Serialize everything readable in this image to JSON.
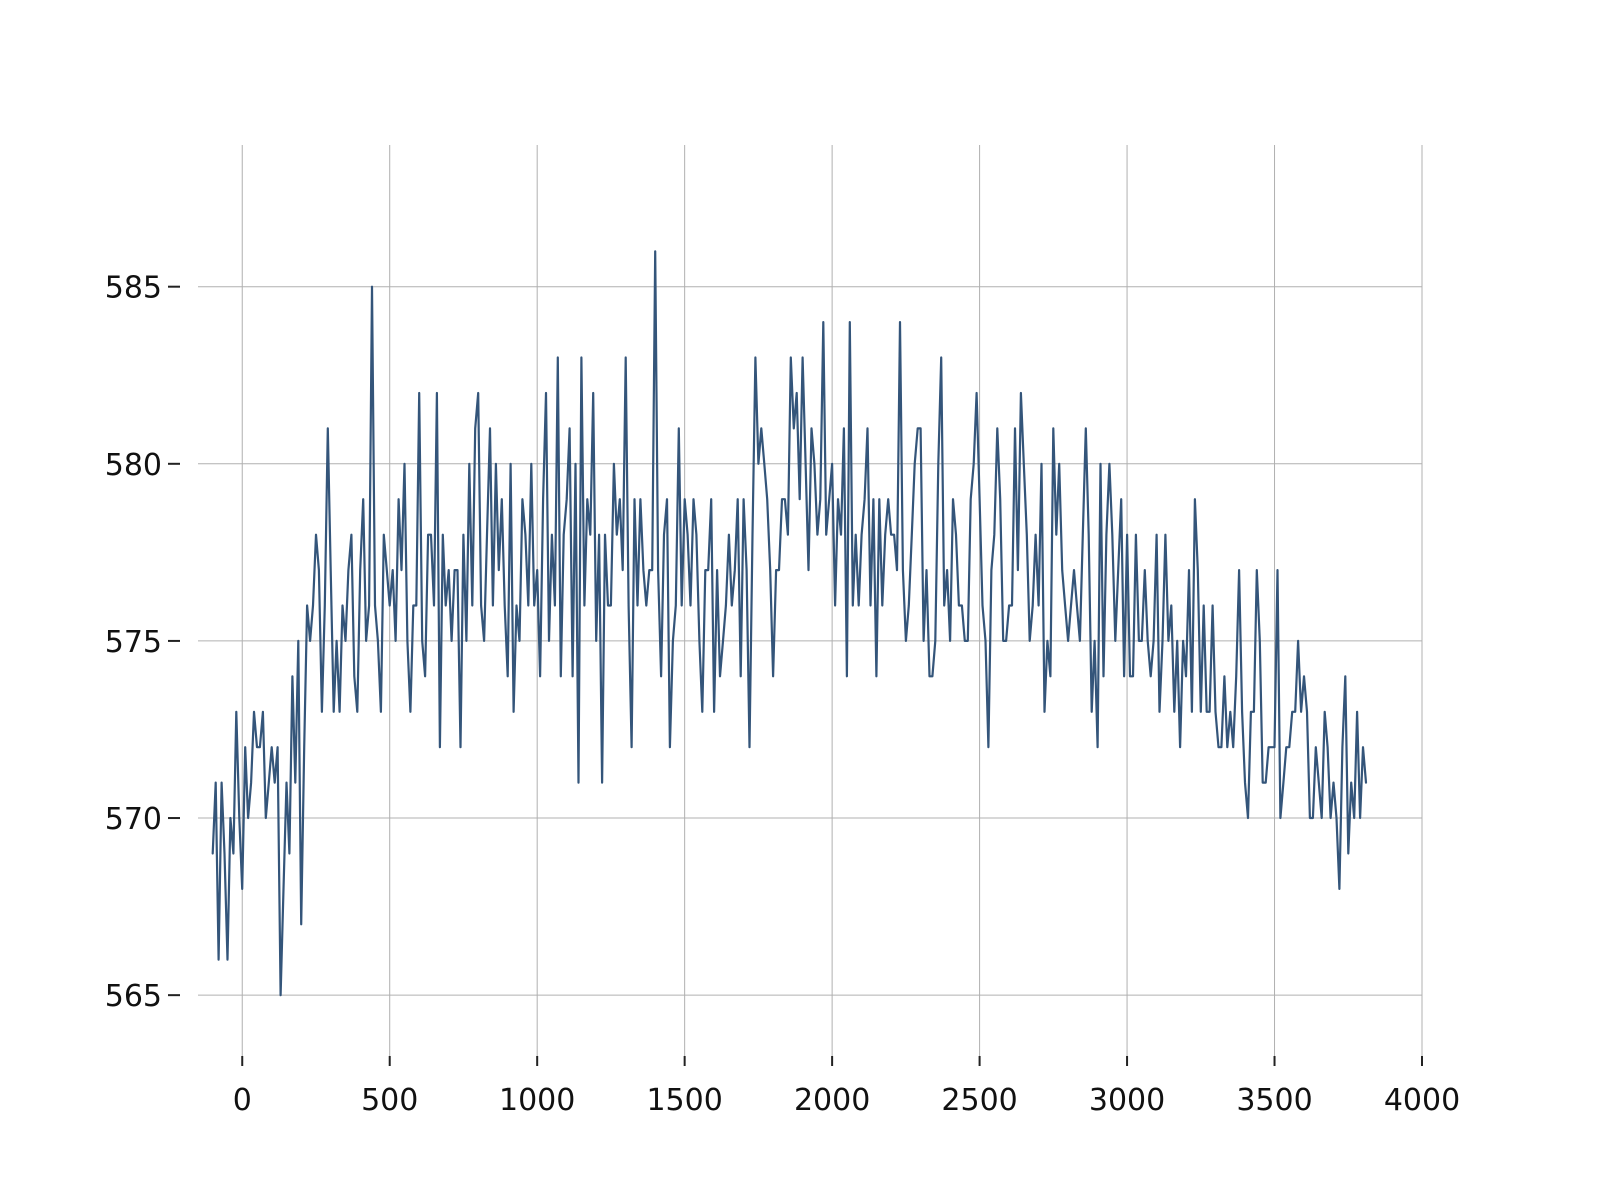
{
  "chart_data": {
    "type": "line",
    "title": "",
    "xlabel": "",
    "ylabel": "",
    "xlim": [
      -150,
      4000
    ],
    "ylim": [
      563,
      589
    ],
    "grid": true,
    "legend": "none",
    "x_ticks": [
      0,
      500,
      1000,
      1500,
      2000,
      2500,
      3000,
      3500,
      4000
    ],
    "x_tick_labels": [
      "0",
      "500",
      "1000",
      "1500",
      "2000",
      "2500",
      "3000",
      "3500",
      "4000"
    ],
    "y_ticks": [
      565,
      570,
      575,
      580,
      585
    ],
    "y_tick_labels": [
      "565",
      "570",
      "575",
      "580",
      "585"
    ],
    "line_color": "#34557a",
    "grid_color": "#b0b0b0",
    "series": [
      {
        "x": [
          -100,
          -90,
          -80,
          -70,
          -60,
          -50,
          -40,
          -30,
          -20,
          -10,
          0,
          10,
          20,
          30,
          40,
          50,
          60,
          70,
          80,
          90,
          100,
          110,
          120,
          130,
          140,
          150,
          160,
          170,
          180,
          190,
          200,
          210,
          220,
          230,
          240,
          250,
          260,
          270,
          280,
          290,
          300,
          310,
          320,
          330,
          340,
          350,
          360,
          370,
          380,
          390,
          400,
          410,
          420,
          430,
          440,
          450,
          460,
          470,
          480,
          490,
          500,
          510,
          520,
          530,
          540,
          550,
          560,
          570,
          580,
          590,
          600,
          610,
          620,
          630,
          640,
          650,
          660,
          670,
          680,
          690,
          700,
          710,
          720,
          730,
          740,
          750,
          760,
          770,
          780,
          790,
          800,
          810,
          820,
          830,
          840,
          850,
          860,
          870,
          880,
          890,
          900,
          910,
          920,
          930,
          940,
          950,
          960,
          970,
          980,
          990,
          1000,
          1010,
          1020,
          1030,
          1040,
          1050,
          1060,
          1070,
          1080,
          1090,
          1100,
          1110,
          1120,
          1130,
          1140,
          1150,
          1160,
          1170,
          1180,
          1190,
          1200,
          1210,
          1220,
          1230,
          1240,
          1250,
          1260,
          1270,
          1280,
          1290,
          1300,
          1310,
          1320,
          1330,
          1340,
          1350,
          1360,
          1370,
          1380,
          1390,
          1400,
          1410,
          1420,
          1430,
          1440,
          1450,
          1460,
          1470,
          1480,
          1490,
          1500,
          1510,
          1520,
          1530,
          1540,
          1550,
          1560,
          1570,
          1580,
          1590,
          1600,
          1610,
          1620,
          1630,
          1640,
          1650,
          1660,
          1670,
          1680,
          1690,
          1700,
          1710,
          1720,
          1730,
          1740,
          1750,
          1760,
          1770,
          1780,
          1790,
          1800,
          1810,
          1820,
          1830,
          1840,
          1850,
          1860,
          1870,
          1880,
          1890,
          1900,
          1910,
          1920,
          1930,
          1940,
          1950,
          1960,
          1970,
          1980,
          1990,
          2000,
          2010,
          2020,
          2030,
          2040,
          2050,
          2060,
          2070,
          2080,
          2090,
          2100,
          2110,
          2120,
          2130,
          2140,
          2150,
          2160,
          2170,
          2180,
          2190,
          2200,
          2210,
          2220,
          2230,
          2240,
          2250,
          2260,
          2270,
          2280,
          2290,
          2300,
          2310,
          2320,
          2330,
          2340,
          2350,
          2360,
          2370,
          2380,
          2390,
          2400,
          2410,
          2420,
          2430,
          2440,
          2450,
          2460,
          2470,
          2480,
          2490,
          2500,
          2510,
          2520,
          2530,
          2540,
          2550,
          2560,
          2570,
          2580,
          2590,
          2600,
          2610,
          2620,
          2630,
          2640,
          2650,
          2660,
          2670,
          2680,
          2690,
          2700,
          2710,
          2720,
          2730,
          2740,
          2750,
          2760,
          2770,
          2780,
          2790,
          2800,
          2810,
          2820,
          2830,
          2840,
          2850,
          2860,
          2870,
          2880,
          2890,
          2900,
          2910,
          2920,
          2930,
          2940,
          2950,
          2960,
          2970,
          2980,
          2990,
          3000,
          3010,
          3020,
          3030,
          3040,
          3050,
          3060,
          3070,
          3080,
          3090,
          3100,
          3110,
          3120,
          3130,
          3140,
          3150,
          3160,
          3170,
          3180,
          3190,
          3200,
          3210,
          3220,
          3230,
          3240,
          3250,
          3260,
          3270,
          3280,
          3290,
          3300,
          3310,
          3320,
          3330,
          3340,
          3350,
          3360,
          3370,
          3380,
          3390,
          3400,
          3410,
          3420,
          3430,
          3440,
          3450,
          3460,
          3470,
          3480,
          3490,
          3500,
          3510,
          3520,
          3530,
          3540,
          3550,
          3560,
          3570,
          3580,
          3590,
          3600,
          3610,
          3620,
          3630,
          3640,
          3650,
          3660,
          3670,
          3680,
          3690,
          3700,
          3710,
          3720,
          3730,
          3740,
          3750,
          3760,
          3770,
          3780,
          3790,
          3800,
          3810
        ],
        "values": [
          569,
          571,
          566,
          571,
          569,
          566,
          570,
          569,
          573,
          570,
          568,
          572,
          570,
          571,
          573,
          572,
          572,
          573,
          570,
          571,
          572,
          571,
          572,
          565,
          568,
          571,
          569,
          574,
          571,
          575,
          567,
          572,
          576,
          575,
          576,
          578,
          577,
          573,
          576,
          581,
          577,
          573,
          575,
          573,
          576,
          575,
          577,
          578,
          574,
          573,
          577,
          579,
          575,
          576,
          585,
          576,
          575,
          573,
          578,
          577,
          576,
          577,
          575,
          579,
          577,
          580,
          575,
          573,
          576,
          576,
          582,
          575,
          574,
          578,
          578,
          576,
          582,
          572,
          578,
          576,
          577,
          575,
          577,
          577,
          572,
          578,
          575,
          580,
          576,
          581,
          582,
          576,
          575,
          578,
          581,
          576,
          580,
          577,
          579,
          576,
          574,
          580,
          573,
          576,
          575,
          579,
          578,
          576,
          580,
          576,
          577,
          574,
          579,
          582,
          575,
          578,
          576,
          583,
          574,
          578,
          579,
          581,
          574,
          580,
          571,
          583,
          576,
          579,
          578,
          582,
          575,
          578,
          571,
          578,
          576,
          576,
          580,
          578,
          579,
          577,
          583,
          576,
          572,
          579,
          576,
          579,
          577,
          576,
          577,
          577,
          586,
          577,
          574,
          578,
          579,
          572,
          575,
          576,
          581,
          576,
          579,
          578,
          576,
          579,
          578,
          575,
          573,
          577,
          577,
          579,
          573,
          577,
          574,
          575,
          576,
          578,
          576,
          577,
          579,
          574,
          579,
          577,
          572,
          578,
          583,
          580,
          581,
          580,
          579,
          577,
          574,
          577,
          577,
          579,
          579,
          578,
          583,
          581,
          582,
          579,
          583,
          580,
          577,
          581,
          580,
          578,
          579,
          584,
          578,
          579,
          580,
          576,
          579,
          578,
          581,
          574,
          584,
          576,
          578,
          576,
          578,
          579,
          581,
          576,
          579,
          574,
          579,
          576,
          578,
          579,
          578,
          578,
          577,
          584,
          577,
          575,
          576,
          578,
          580,
          581,
          581,
          575,
          577,
          574,
          574,
          575,
          580,
          583,
          576,
          577,
          575,
          579,
          578,
          576,
          576,
          575,
          575,
          579,
          580,
          582,
          579,
          576,
          575,
          572,
          577,
          578,
          581,
          579,
          575,
          575,
          576,
          576,
          581,
          577,
          582,
          580,
          578,
          575,
          576,
          578,
          576,
          580,
          573,
          575,
          574,
          581,
          578,
          580,
          577,
          576,
          575,
          576,
          577,
          576,
          575,
          578,
          581,
          578,
          573,
          575,
          572,
          580,
          574,
          578,
          580,
          578,
          575,
          577,
          579,
          574,
          578,
          574,
          574,
          578,
          575,
          575,
          577,
          575,
          574,
          575,
          578,
          573,
          575,
          578,
          575,
          576,
          573,
          575,
          572,
          575,
          574,
          577,
          573,
          579,
          577,
          573,
          576,
          573,
          573,
          576,
          573,
          572,
          572,
          574,
          572,
          573,
          572,
          574,
          577,
          573,
          571,
          570,
          573,
          573,
          577,
          575,
          571,
          571,
          572,
          572,
          572,
          577,
          570,
          571,
          572,
          572,
          573,
          573,
          575,
          573,
          574,
          573,
          570,
          570,
          572,
          571,
          570,
          573,
          572,
          570,
          571,
          570,
          568,
          572,
          574,
          569,
          571,
          570,
          573,
          570,
          572,
          571
        ]
      }
    ]
  }
}
